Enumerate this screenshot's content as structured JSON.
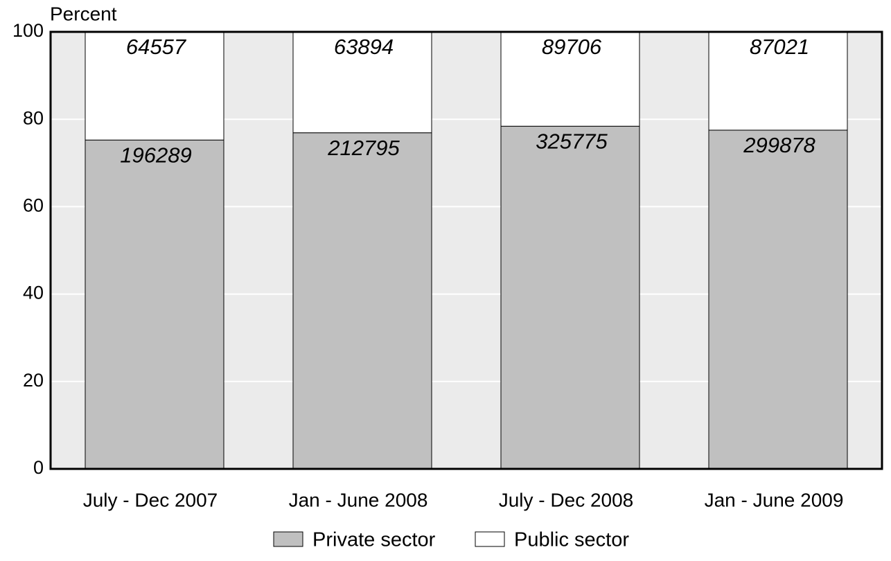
{
  "chart_data": {
    "type": "bar",
    "stacked": true,
    "y_label": "Percent",
    "categories": [
      "July - Dec 2007",
      "Jan - June 2008",
      "July - Dec 2008",
      "Jan - June 2009"
    ],
    "series": [
      {
        "name": "Private sector",
        "color": "#c0c0c0",
        "values": [
          75.25,
          76.91,
          78.41,
          77.51
        ],
        "counts": [
          196289,
          212795,
          325775,
          299878
        ]
      },
      {
        "name": "Public sector",
        "color": "#ffffff",
        "values": [
          24.75,
          23.09,
          21.59,
          22.49
        ],
        "counts": [
          64557,
          63894,
          89706,
          87021
        ]
      }
    ],
    "ylim": [
      0,
      100
    ],
    "yticks": [
      0,
      20,
      40,
      60,
      80,
      100
    ],
    "grid": true,
    "background": "#ebebeb",
    "legend": "bottom"
  }
}
